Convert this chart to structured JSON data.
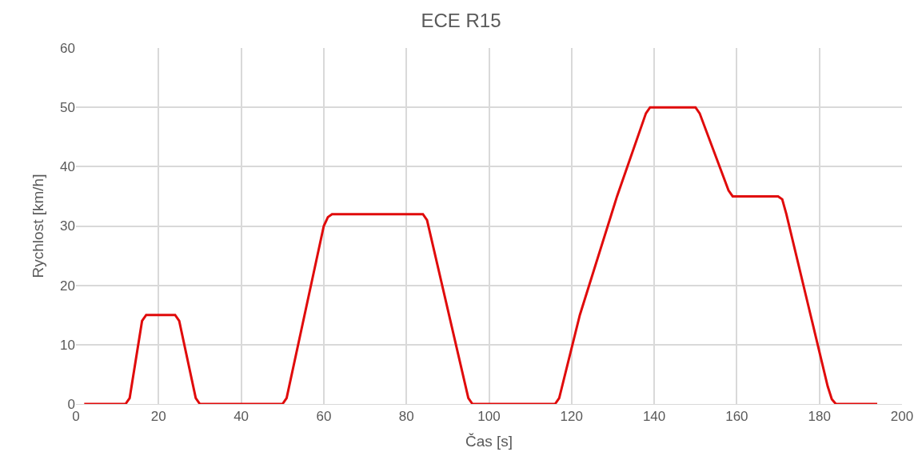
{
  "chart_data": {
    "type": "line",
    "title": "ECE R15",
    "xlabel": "Čas [s]",
    "ylabel": "Rychlost [km/h]",
    "x": [
      2,
      12,
      13,
      16,
      17,
      18,
      23,
      24,
      25,
      29,
      30,
      50,
      51,
      60,
      61,
      62,
      83,
      84,
      85,
      95,
      96,
      116,
      117,
      122,
      131,
      138,
      139,
      140,
      149,
      150,
      151,
      158,
      159,
      160,
      169,
      170,
      171,
      172,
      182,
      183,
      184,
      194
    ],
    "series": [
      {
        "color": "#e00b0b",
        "values": [
          0,
          0,
          1,
          14,
          15,
          15,
          15,
          15,
          14,
          1,
          0,
          0,
          1,
          30,
          31.5,
          32,
          32,
          32,
          31,
          1,
          0,
          0,
          1,
          15,
          35,
          49,
          50,
          50,
          50,
          50,
          49,
          36,
          35,
          35,
          35,
          35,
          34.5,
          32,
          3,
          0.8,
          0,
          0
        ]
      }
    ],
    "xlim": [
      0,
      200
    ],
    "xticks": [
      0,
      20,
      40,
      60,
      80,
      100,
      120,
      140,
      160,
      180,
      200
    ],
    "ylim": [
      0,
      60
    ],
    "yticks": [
      0,
      10,
      20,
      30,
      40,
      50,
      60
    ],
    "grid": true,
    "marker": "none",
    "line_style": "solid"
  }
}
